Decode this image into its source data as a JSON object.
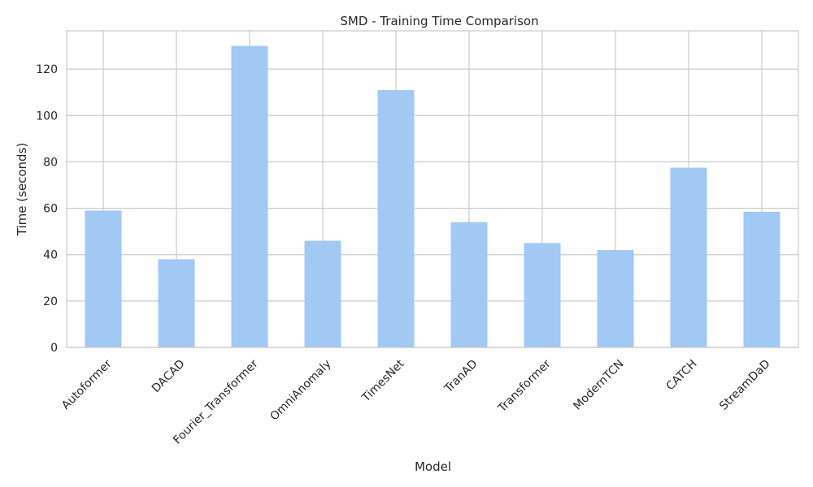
{
  "chart_data": {
    "type": "bar",
    "title": "SMD - Training Time Comparison",
    "xlabel": "Model",
    "ylabel": "Time (seconds)",
    "categories": [
      "Autoformer",
      "DACAD",
      "Fourier_Transformer",
      "OmniAnomaly",
      "TimesNet",
      "TranAD",
      "Transformer",
      "ModernTCN",
      "CATCH",
      "StreamDaD"
    ],
    "values": [
      59,
      38,
      130,
      46,
      111,
      54,
      45,
      42,
      77.5,
      58.5
    ],
    "ylim": [
      0,
      136.5
    ],
    "yticks": [
      0,
      20,
      40,
      60,
      80,
      100,
      120
    ],
    "grid": true,
    "legend": "none"
  },
  "colors": {
    "bar": "#a1c9f4",
    "grid": "#cccccc",
    "axes": "#cccccc",
    "text": "#262626",
    "background": "#ffffff"
  }
}
